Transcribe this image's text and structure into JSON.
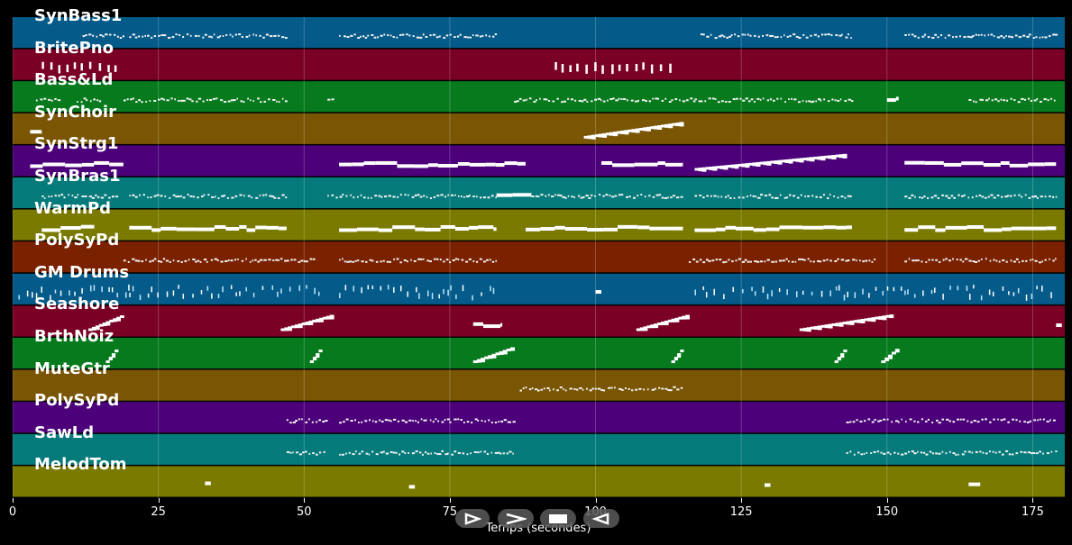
{
  "tracks": [
    {
      "name": "SynBass1",
      "color": "#045a88"
    },
    {
      "name": "BritePno",
      "color": "#7a0026"
    },
    {
      "name": "Bass&Ld",
      "color": "#067a1c"
    },
    {
      "name": "SynChoir",
      "color": "#7a5604"
    },
    {
      "name": "SynStrg1",
      "color": "#4c007a"
    },
    {
      "name": "SynBras1",
      "color": "#047a7a"
    },
    {
      "name": "WarmPd",
      "color": "#7a7a00"
    },
    {
      "name": "PolySyPd",
      "color": "#7a2100"
    },
    {
      "name": "GM Drums",
      "color": "#045a88"
    },
    {
      "name": "Seashore",
      "color": "#7a0026"
    },
    {
      "name": "BrthNoiz",
      "color": "#067a1c"
    },
    {
      "name": "MuteGtr",
      "color": "#7a5604"
    },
    {
      "name": "PolySyPd",
      "color": "#4c007a"
    },
    {
      "name": "SawLd",
      "color": "#047a7a"
    },
    {
      "name": "MelodTom",
      "color": "#7a7a00"
    }
  ],
  "axis": {
    "xlabel": "Temps (secondes)",
    "xlim": [
      0,
      180.5
    ],
    "ticks": [
      0,
      25,
      50,
      75,
      100,
      125,
      150,
      175
    ],
    "grid": true
  },
  "controls": [
    {
      "name": "play-button",
      "icon": "play-outline-icon"
    },
    {
      "name": "forward-button",
      "icon": "chevron-right-icon"
    },
    {
      "name": "stop-button",
      "icon": "stop-icon"
    },
    {
      "name": "rewind-button",
      "icon": "rewind-icon"
    }
  ],
  "segments": {
    "SynBass1": [
      [
        12,
        19,
        "d"
      ],
      [
        20,
        47,
        "d"
      ],
      [
        56,
        83,
        "d"
      ],
      [
        118,
        144,
        "d"
      ],
      [
        153,
        179,
        "d"
      ]
    ],
    "BritePno": [
      [
        5,
        18,
        "v"
      ],
      [
        93,
        113,
        "v"
      ]
    ],
    "Bass&Ld": [
      [
        4,
        8,
        "d"
      ],
      [
        11,
        15,
        "d"
      ],
      [
        19,
        47,
        "d"
      ],
      [
        54,
        55,
        "d"
      ],
      [
        86,
        117,
        "d"
      ],
      [
        117,
        144,
        "d"
      ],
      [
        150,
        152,
        "s"
      ],
      [
        164,
        179,
        "d"
      ]
    ],
    "SynChoir": [
      [
        3,
        5,
        "s"
      ],
      [
        98,
        115,
        "r"
      ]
    ],
    "SynStrg1": [
      [
        3,
        19,
        "s"
      ],
      [
        56,
        88,
        "s"
      ],
      [
        101,
        115,
        "s"
      ],
      [
        117,
        143,
        "r"
      ],
      [
        153,
        179,
        "s"
      ]
    ],
    "SynBras1": [
      [
        5,
        18,
        "d"
      ],
      [
        20,
        47,
        "d"
      ],
      [
        54,
        83,
        "d"
      ],
      [
        83,
        89,
        "s"
      ],
      [
        89,
        115,
        "d"
      ],
      [
        117,
        144,
        "d"
      ],
      [
        153,
        179,
        "d"
      ]
    ],
    "WarmPd": [
      [
        5,
        14,
        "s"
      ],
      [
        20,
        47,
        "s"
      ],
      [
        56,
        83,
        "s"
      ],
      [
        88,
        115,
        "s"
      ],
      [
        117,
        144,
        "s"
      ],
      [
        153,
        179,
        "s"
      ]
    ],
    "PolySyPd": [
      [
        19,
        52,
        "d"
      ],
      [
        56,
        83,
        "d"
      ],
      [
        116,
        148,
        "d"
      ],
      [
        153,
        179,
        "d"
      ]
    ],
    "GM Drums": [
      [
        1,
        20,
        "p"
      ],
      [
        20,
        54,
        "p"
      ],
      [
        56,
        83,
        "p"
      ],
      [
        100,
        101,
        "s"
      ],
      [
        117,
        179,
        "p"
      ]
    ],
    "Seashore": [
      [
        13,
        19,
        "r"
      ],
      [
        46,
        55,
        "r"
      ],
      [
        79,
        84,
        "s"
      ],
      [
        107,
        116,
        "r"
      ],
      [
        135,
        151,
        "r"
      ],
      [
        179,
        180,
        "s"
      ]
    ],
    "BrthNoiz": [
      [
        16,
        18,
        "r"
      ],
      [
        51,
        53,
        "r"
      ],
      [
        79,
        86,
        "r"
      ],
      [
        113,
        115,
        "r"
      ],
      [
        141,
        143,
        "r"
      ],
      [
        149,
        152,
        "r"
      ]
    ],
    "MuteGtr": [
      [
        87,
        115,
        "d"
      ]
    ],
    "PolySyPd_2": [
      [
        47,
        54,
        "d"
      ],
      [
        56,
        86,
        "d"
      ],
      [
        143,
        179,
        "d"
      ]
    ],
    "SawLd": [
      [
        47,
        54,
        "d"
      ],
      [
        56,
        86,
        "d"
      ],
      [
        143,
        179,
        "d"
      ]
    ],
    "MelodTom": [
      [
        33,
        34,
        "s"
      ],
      [
        68,
        69,
        "s"
      ],
      [
        129,
        130,
        "s"
      ],
      [
        164,
        166,
        "s"
      ]
    ]
  }
}
